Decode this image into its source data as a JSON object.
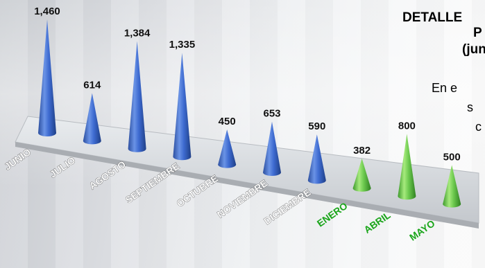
{
  "chart_data": {
    "type": "bar",
    "categories": [
      "JUNIO",
      "JULIO",
      "AGOSTO",
      "SEPTIEMBRE",
      "OCTUBRE",
      "NOVIEMBRE",
      "DICIEMBRE",
      "ENERO",
      "ABRIL",
      "MAYO"
    ],
    "values": [
      1460,
      614,
      1384,
      1335,
      450,
      653,
      590,
      382,
      800,
      500
    ],
    "value_labels": [
      "1,460",
      "614",
      "1,384",
      "1,335",
      "450",
      "653",
      "590",
      "382",
      "800",
      "500"
    ],
    "highlighted_categories": [
      "ENERO",
      "ABRIL",
      "MAYO"
    ],
    "colors": {
      "base": "#3b67c9",
      "highlight": "#69c94a",
      "highlight_label": "#1aa51a"
    },
    "mark_shape": "cone"
  },
  "side_text": {
    "title_lines": [
      "DETALLE",
      "P",
      "(jun"
    ],
    "body_lines": [
      "En e",
      "s",
      "c"
    ]
  }
}
